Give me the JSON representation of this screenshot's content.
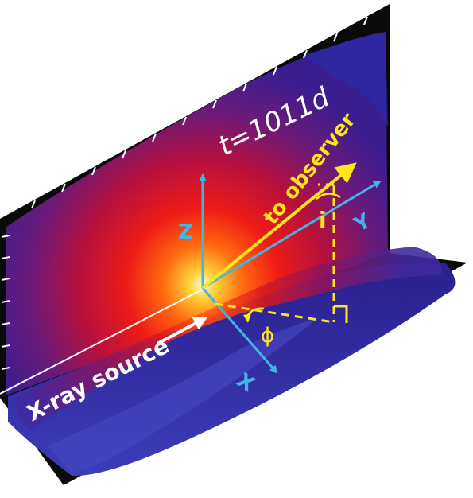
{
  "labels": {
    "time": "t=1011d",
    "observer": "to observer",
    "axis_x": "X",
    "axis_y": "Y",
    "axis_z": "Z",
    "angle_i": "i",
    "angle_phi": "ϕ",
    "source": "X-ray source"
  },
  "colors": {
    "axis": "#3fb5e8",
    "observer": "#ffe51a",
    "label_white": "#ffffff",
    "background": "#ffffff",
    "frame": "#0a0a0a"
  }
}
